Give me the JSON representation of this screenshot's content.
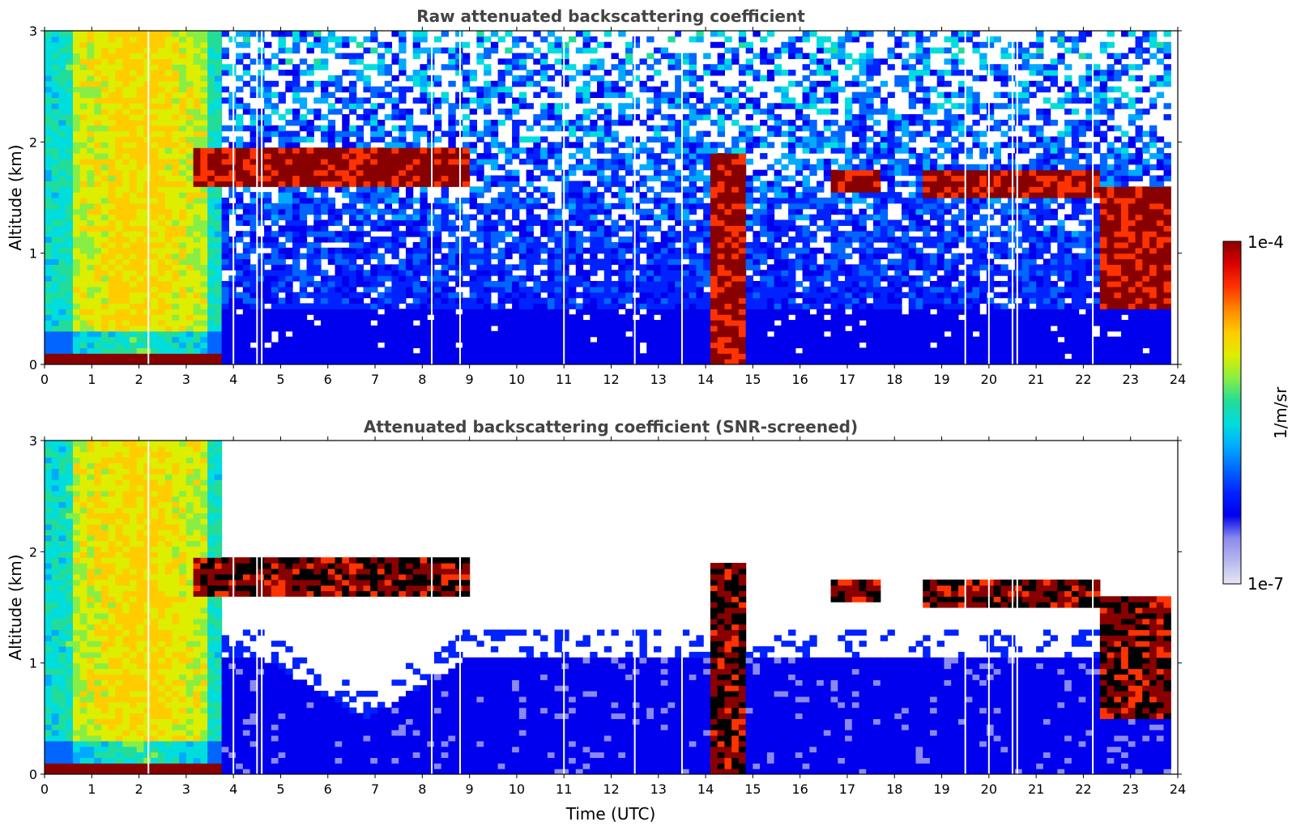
{
  "chart_data": [
    {
      "type": "heatmap",
      "title": "Raw attenuated backscattering coefficient",
      "xlabel": "",
      "ylabel": "Altitude (km)",
      "xlim": [
        0,
        24
      ],
      "ylim": [
        0,
        3
      ],
      "x_ticks": [
        "0",
        "1",
        "2",
        "3",
        "4",
        "5",
        "6",
        "7",
        "8",
        "9",
        "10",
        "11",
        "12",
        "13",
        "14",
        "15",
        "16",
        "17",
        "18",
        "19",
        "20",
        "21",
        "22",
        "23",
        "24"
      ],
      "y_ticks": [
        "0",
        "1",
        "2",
        "3"
      ],
      "layers": [
        {
          "name": "cloud layer",
          "x": [
            3.2,
            9.0
          ],
          "altitude_km": [
            1.6,
            1.95
          ]
        },
        {
          "name": "cloud layer",
          "x": [
            14.1,
            14.9
          ],
          "altitude_km": [
            0.0,
            1.9
          ]
        },
        {
          "name": "cloud layer",
          "x": [
            16.6,
            17.7
          ],
          "altitude_km": [
            1.55,
            1.75
          ]
        },
        {
          "name": "cloud layer",
          "x": [
            18.6,
            22.4
          ],
          "altitude_km": [
            1.5,
            1.75
          ]
        },
        {
          "name": "low cloud",
          "x": [
            22.4,
            23.8
          ],
          "altitude_km": [
            0.5,
            1.6
          ]
        },
        {
          "name": "surface layer",
          "x": [
            0.0,
            3.8
          ],
          "altitude_km": [
            0.0,
            0.1
          ]
        }
      ],
      "missing_profiles_utc": [
        2.2,
        4.0,
        4.5,
        4.6,
        8.2,
        8.8,
        11.0,
        12.5,
        13.5,
        19.5,
        20.0,
        20.5,
        20.6,
        22.2
      ]
    },
    {
      "type": "heatmap",
      "title": "Attenuated backscattering coefficient (SNR-screened)",
      "xlabel": "Time (UTC)",
      "ylabel": "Altitude (km)",
      "xlim": [
        0,
        24
      ],
      "ylim": [
        0,
        3
      ],
      "x_ticks": [
        "0",
        "1",
        "2",
        "3",
        "4",
        "5",
        "6",
        "7",
        "8",
        "9",
        "10",
        "11",
        "12",
        "13",
        "14",
        "15",
        "16",
        "17",
        "18",
        "19",
        "20",
        "21",
        "22",
        "23",
        "24"
      ],
      "y_ticks": [
        "0",
        "1",
        "2",
        "3"
      ],
      "screened_region_top_km": 1.05
    }
  ],
  "colorbar": {
    "max_label": "1e-4",
    "min_label": "1e-7",
    "label": "1/m/sr",
    "colors": [
      "#e6e6f5",
      "#b8b8ee",
      "#8a8aee",
      "#0000ee",
      "#0022ff",
      "#0066ff",
      "#00aaff",
      "#00dddd",
      "#22dd99",
      "#88ee44",
      "#ddee00",
      "#ffcc00",
      "#ff8800",
      "#ff3300",
      "#dd0000",
      "#880000"
    ]
  }
}
